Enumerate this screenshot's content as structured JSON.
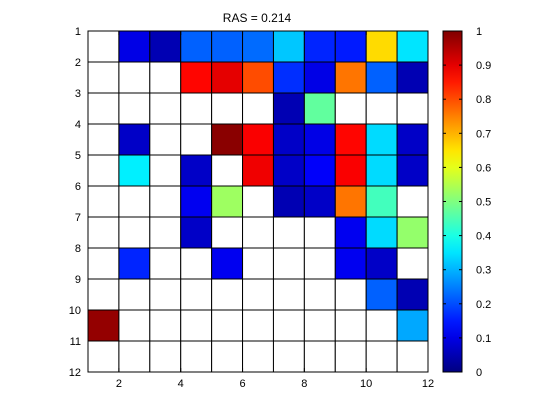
{
  "chart_data": {
    "type": "heatmap",
    "title": "RAS = 0.214",
    "x_ticks": [
      "2",
      "4",
      "6",
      "8",
      "10",
      "12"
    ],
    "y_ticks": [
      "1",
      "2",
      "3",
      "4",
      "5",
      "6",
      "7",
      "8",
      "9",
      "10",
      "11",
      "12"
    ],
    "xlim": [
      1,
      12
    ],
    "ylim": [
      1,
      12
    ],
    "colorbar": {
      "colormap": "jet",
      "range": [
        0,
        1
      ],
      "ticks": [
        "0",
        "0.1",
        "0.2",
        "0.3",
        "0.4",
        "0.5",
        "0.6",
        "0.7",
        "0.8",
        "0.9",
        "1"
      ]
    },
    "empty_color": "#ffffff",
    "matrix": [
      [
        null,
        0.1,
        0.05,
        0.22,
        0.22,
        0.23,
        0.32,
        0.16,
        0.15,
        0.66,
        0.35
      ],
      [
        null,
        null,
        null,
        0.87,
        0.9,
        0.8,
        0.17,
        0.1,
        0.76,
        0.22,
        0.05
      ],
      [
        null,
        null,
        null,
        null,
        null,
        null,
        0.05,
        0.47,
        null,
        null,
        null
      ],
      [
        null,
        0.07,
        null,
        null,
        0.99,
        0.88,
        0.07,
        0.1,
        0.87,
        0.34,
        0.07
      ],
      [
        null,
        0.36,
        null,
        0.07,
        null,
        0.89,
        0.07,
        0.12,
        0.88,
        0.34,
        0.07
      ],
      [
        null,
        null,
        null,
        0.11,
        0.53,
        null,
        0.05,
        0.07,
        0.76,
        0.44,
        null
      ],
      [
        null,
        null,
        null,
        0.07,
        null,
        null,
        null,
        null,
        0.11,
        0.34,
        0.52
      ],
      [
        null,
        0.16,
        null,
        null,
        0.11,
        null,
        null,
        null,
        0.11,
        0.07,
        null
      ],
      [
        null,
        null,
        null,
        null,
        null,
        null,
        null,
        null,
        null,
        0.22,
        0.05
      ],
      [
        0.98,
        null,
        null,
        null,
        null,
        null,
        null,
        null,
        null,
        null,
        0.29
      ],
      [
        null,
        null,
        null,
        null,
        null,
        null,
        null,
        null,
        null,
        null,
        null
      ]
    ]
  }
}
